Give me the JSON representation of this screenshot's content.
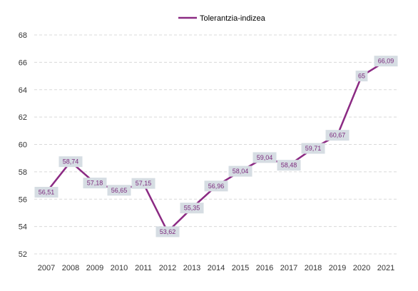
{
  "chart_data": {
    "type": "line",
    "categories": [
      "2007",
      "2008",
      "2009",
      "2010",
      "2011",
      "2012",
      "2013",
      "2014",
      "2015",
      "2016",
      "2017",
      "2018",
      "2019",
      "2020",
      "2021"
    ],
    "series": [
      {
        "name": "Tolerantzia-indizea",
        "values": [
          56.51,
          58.74,
          57.18,
          56.65,
          57.15,
          53.62,
          55.35,
          56.96,
          58.04,
          59.04,
          58.48,
          59.71,
          60.67,
          65,
          66.09
        ],
        "labels": [
          "56,51",
          "58,74",
          "57,18",
          "56,65",
          "57,15",
          "53,62",
          "55,35",
          "56,96",
          "58,04",
          "59,04",
          "58,48",
          "59,71",
          "60,67",
          "65",
          "66,09"
        ],
        "color": "#8b2a83"
      }
    ],
    "yticks": [
      "52",
      "54",
      "56",
      "58",
      "60",
      "62",
      "64",
      "66",
      "68"
    ],
    "ylim": [
      52,
      68
    ],
    "grid": true,
    "legend": "top-center",
    "colors": {
      "line": "#8b2a83",
      "label_bg": "#d6dde3",
      "label_text": "#7b2a7d",
      "grid": "#d9d9d9"
    }
  }
}
